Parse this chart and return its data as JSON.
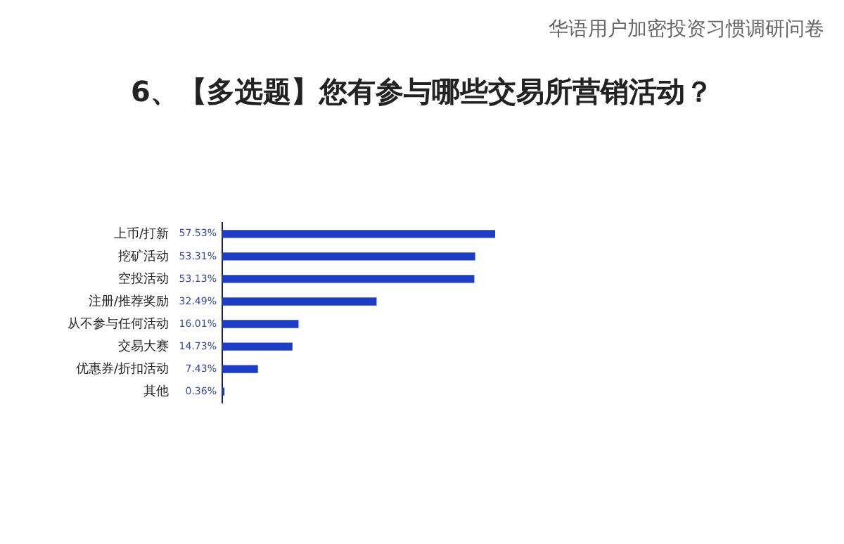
{
  "chart_data": {
    "type": "bar",
    "orientation": "horizontal",
    "title": "6、【多选题】您有参与哪些交易所营销活动？",
    "subtitle": "华语用户加密投资习惯调研问卷",
    "categories": [
      "上币/打新",
      "挖矿活动",
      "空投活动",
      "注册/推荐奖励",
      "从不参与任何活动",
      "交易大赛",
      "优惠券/折扣活动",
      "其他"
    ],
    "values": [
      57.53,
      53.31,
      53.13,
      32.49,
      16.01,
      14.73,
      7.43,
      0.36
    ],
    "value_labels": [
      "57.53%",
      "53.31%",
      "53.13%",
      "32.49%",
      "16.01%",
      "14.73%",
      "7.43%",
      "0.36%"
    ],
    "color": "#1f3cc4",
    "grid": false,
    "legend": false,
    "tick_labels": "y"
  }
}
